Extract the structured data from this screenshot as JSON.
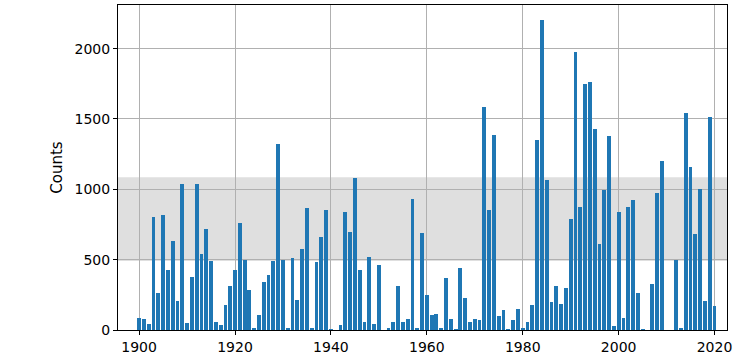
{
  "chart_data": {
    "type": "bar",
    "y_label": "Counts",
    "x": [
      1900,
      1901,
      1902,
      1903,
      1904,
      1905,
      1906,
      1907,
      1908,
      1909,
      1910,
      1911,
      1912,
      1913,
      1914,
      1915,
      1916,
      1917,
      1918,
      1919,
      1920,
      1921,
      1922,
      1923,
      1924,
      1925,
      1926,
      1927,
      1928,
      1929,
      1930,
      1931,
      1932,
      1933,
      1934,
      1935,
      1936,
      1937,
      1938,
      1939,
      1940,
      1941,
      1942,
      1943,
      1944,
      1945,
      1946,
      1947,
      1948,
      1949,
      1950,
      1951,
      1952,
      1953,
      1954,
      1955,
      1956,
      1957,
      1958,
      1959,
      1960,
      1961,
      1962,
      1963,
      1964,
      1965,
      1966,
      1967,
      1968,
      1969,
      1970,
      1971,
      1972,
      1973,
      1974,
      1975,
      1976,
      1977,
      1978,
      1979,
      1980,
      1981,
      1982,
      1983,
      1984,
      1985,
      1986,
      1987,
      1988,
      1989,
      1990,
      1991,
      1992,
      1993,
      1994,
      1995,
      1996,
      1997,
      1998,
      1999,
      2000,
      2001,
      2002,
      2003,
      2004,
      2005,
      2006,
      2007,
      2008,
      2009,
      2010,
      2011,
      2012,
      2013,
      2014,
      2015,
      2016,
      2017,
      2018,
      2019,
      2020
    ],
    "values": [
      85,
      75,
      45,
      800,
      265,
      820,
      430,
      635,
      205,
      1040,
      50,
      375,
      1035,
      540,
      720,
      490,
      55,
      35,
      175,
      315,
      430,
      760,
      500,
      285,
      10,
      105,
      340,
      390,
      490,
      1325,
      500,
      10,
      510,
      215,
      575,
      870,
      15,
      480,
      660,
      850,
      5,
      0,
      35,
      840,
      700,
      1080,
      430,
      60,
      520,
      45,
      460,
      0,
      10,
      55,
      310,
      60,
      75,
      930,
      10,
      690,
      250,
      110,
      115,
      15,
      370,
      75,
      5,
      440,
      230,
      55,
      80,
      70,
      1585,
      850,
      1385,
      100,
      145,
      5,
      70,
      150,
      15,
      60,
      180,
      1350,
      2200,
      1065,
      200,
      315,
      185,
      300,
      790,
      1975,
      875,
      1750,
      1765,
      1430,
      610,
      995,
      1380,
      25,
      840,
      85,
      875,
      925,
      260,
      5,
      0,
      325,
      975,
      1200,
      0,
      0,
      495,
      10,
      1540,
      1160,
      685,
      1000,
      205,
      1515,
      170
    ],
    "color": "#1f77b4",
    "band": {
      "y0": 490,
      "y1": 1085
    },
    "xlim": [
      1895.6,
      2022.6
    ],
    "ylim": [
      0,
      2310
    ],
    "xticks": [
      1900,
      1920,
      1940,
      1960,
      1980,
      2000,
      2020
    ],
    "yticks": [
      0,
      500,
      1000,
      1500,
      2000
    ],
    "grid": true
  }
}
